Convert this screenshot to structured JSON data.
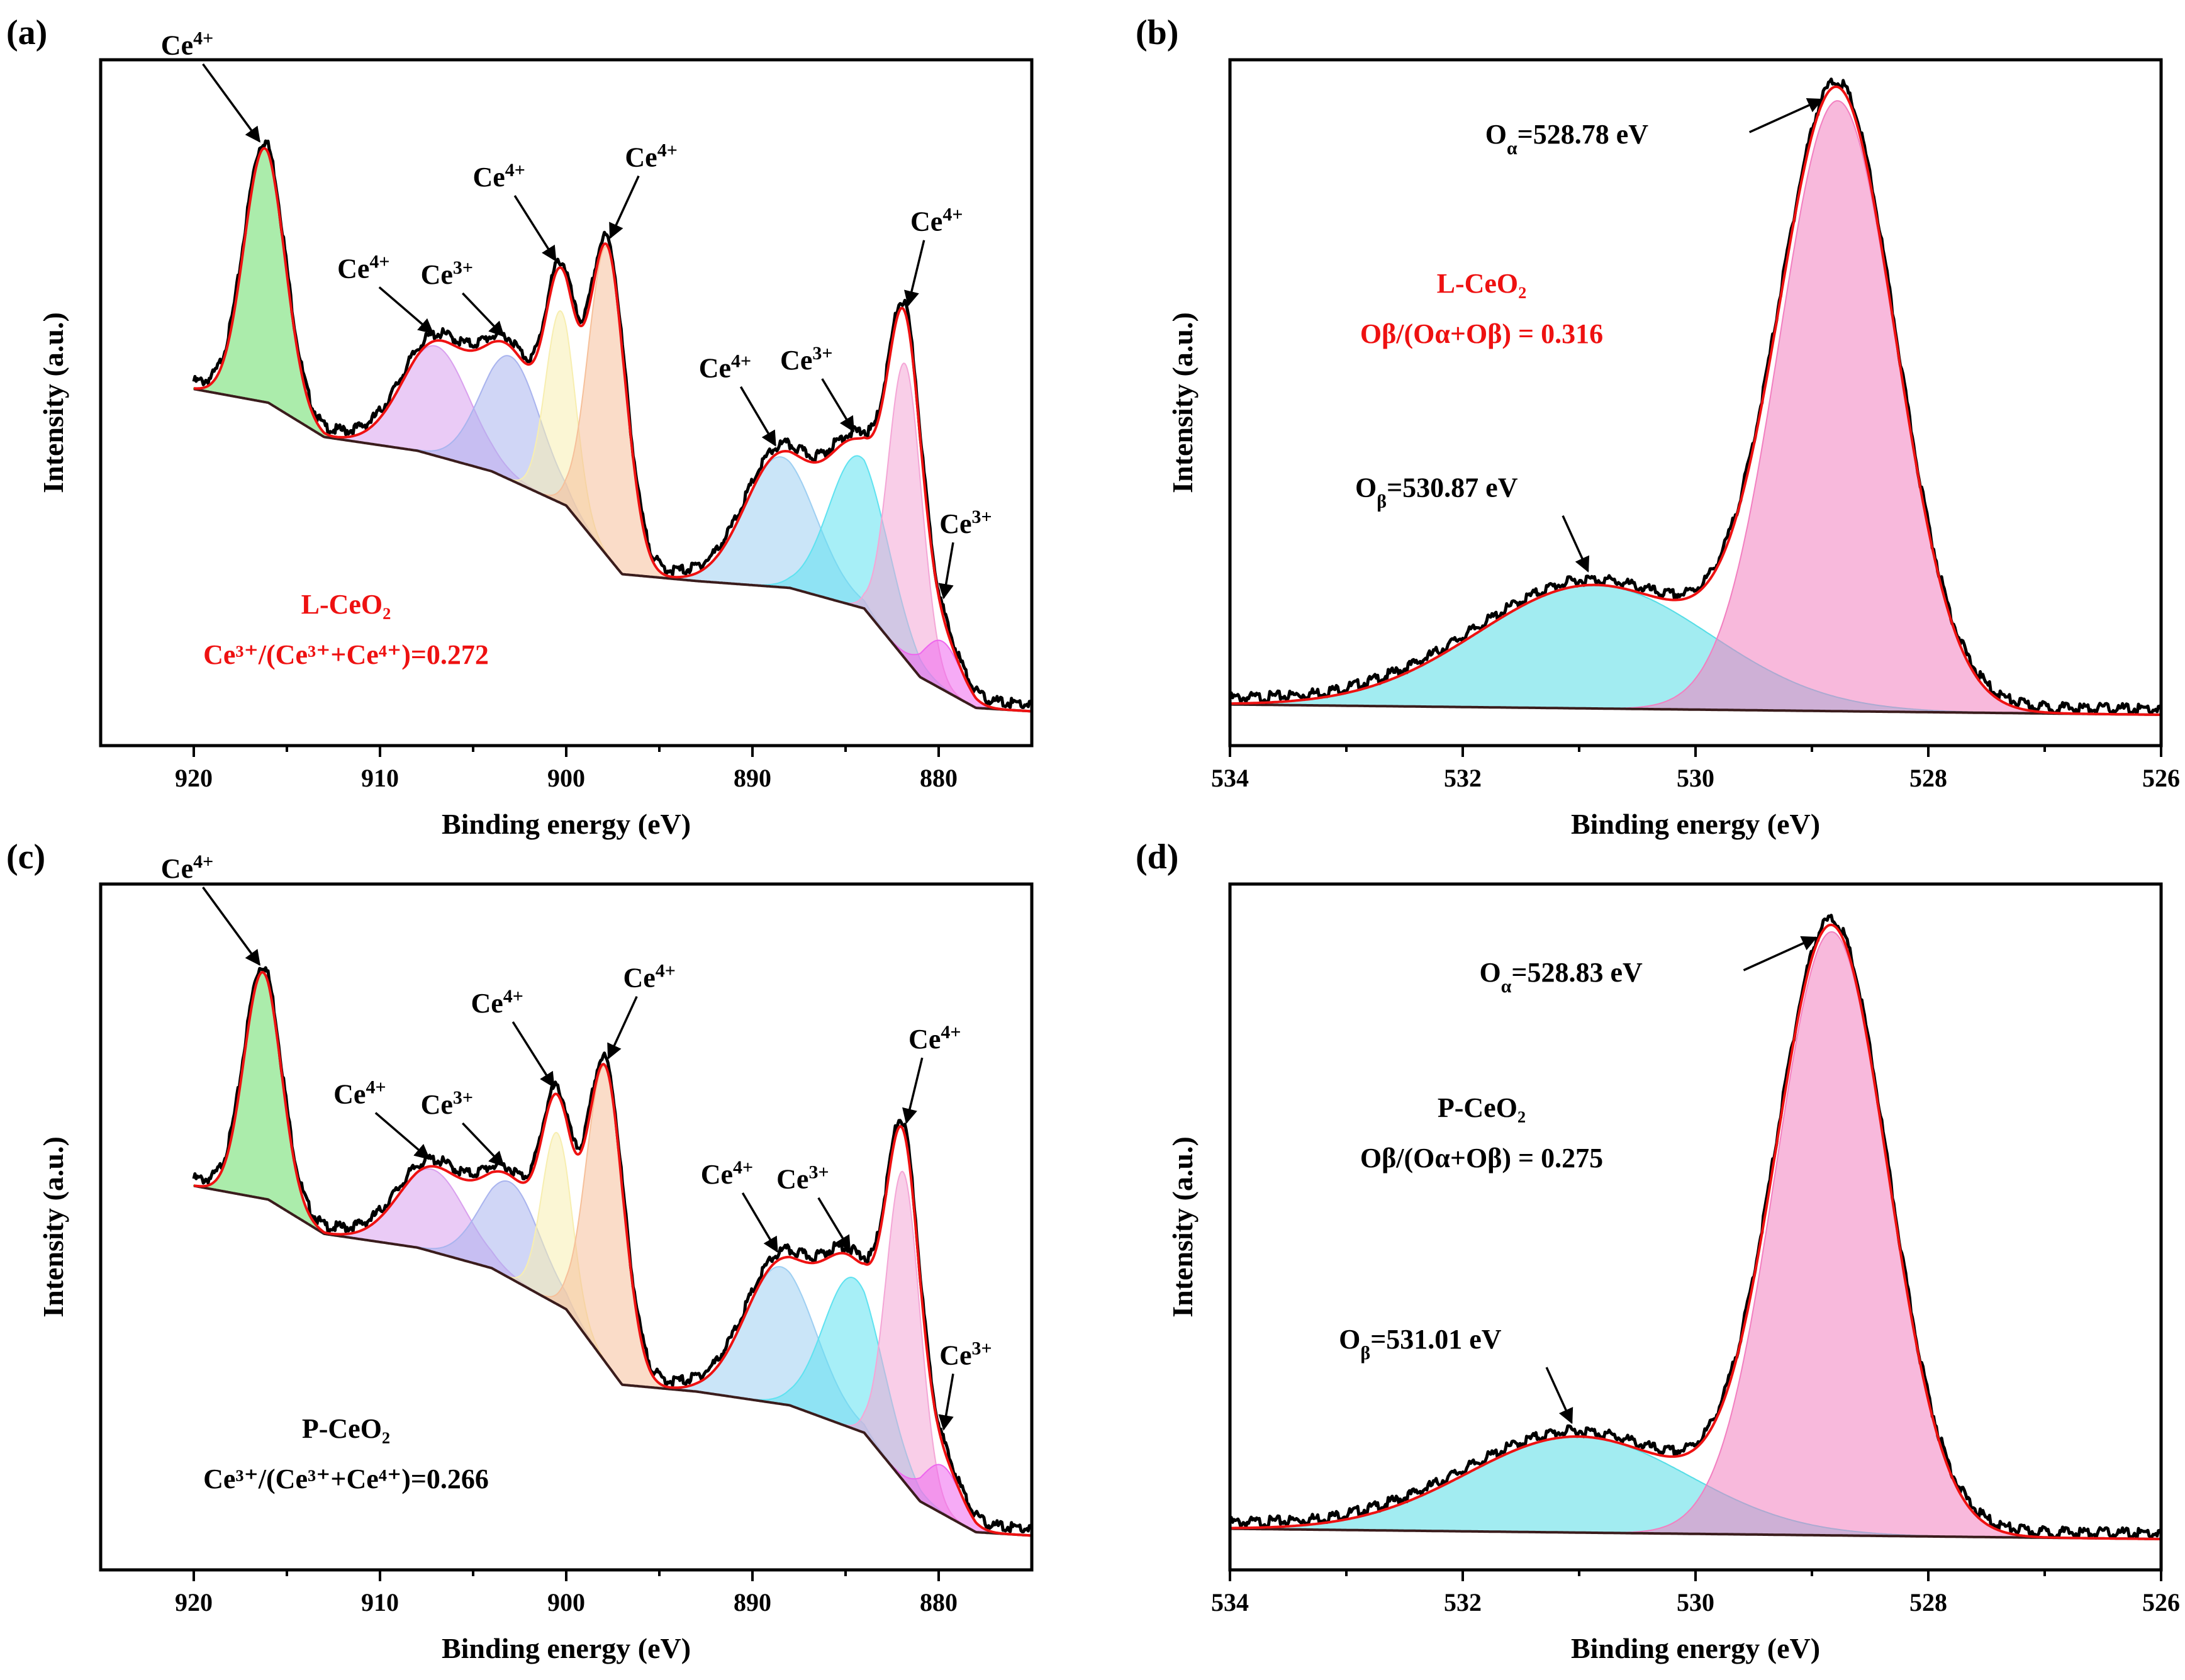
{
  "chart_data": [
    {
      "panel": "(a)",
      "type": "line",
      "title": "",
      "xlabel": "Binding energy (eV)",
      "ylabel": "Intensity (a.u.)",
      "xlim": [
        925,
        875
      ],
      "xticks": [
        920,
        910,
        900,
        890,
        880
      ],
      "ylim": [
        0,
        1
      ],
      "sample_label": "L-CeO₂",
      "ratio_label": "Ce³⁺/(Ce³⁺+Ce⁴⁺)=0.272",
      "label_color": "#ee1111",
      "background": {
        "x": [
          920,
          916,
          913,
          908,
          904,
          900,
          897,
          893,
          888,
          884,
          881,
          878,
          875
        ],
        "y": [
          0.52,
          0.5,
          0.45,
          0.43,
          0.4,
          0.35,
          0.25,
          0.24,
          0.23,
          0.2,
          0.1,
          0.055,
          0.05
        ]
      },
      "components": [
        {
          "center": 916.2,
          "height": 0.37,
          "sigma": 1.1,
          "color": "#66dd66",
          "label": "Ce4+"
        },
        {
          "center": 907.0,
          "height": 0.16,
          "sigma": 1.8,
          "color": "#d9a0ee",
          "label": "Ce4+"
        },
        {
          "center": 903.0,
          "height": 0.18,
          "sigma": 1.6,
          "color": "#a9b4ee",
          "label": "Ce3+"
        },
        {
          "center": 900.3,
          "height": 0.28,
          "sigma": 0.8,
          "color": "#f7eeb0",
          "label": "Ce4+"
        },
        {
          "center": 897.8,
          "height": 0.45,
          "sigma": 1.0,
          "color": "#f6c09a",
          "label": "Ce4+"
        },
        {
          "center": 888.5,
          "height": 0.19,
          "sigma": 1.9,
          "color": "#9ecff2",
          "label": "Ce4+"
        },
        {
          "center": 884.3,
          "height": 0.22,
          "sigma": 1.6,
          "color": "#5fe2f0",
          "label": "Ce3+"
        },
        {
          "center": 881.8,
          "height": 0.43,
          "sigma": 0.9,
          "color": "#f4a6d6",
          "label": "Ce4+"
        },
        {
          "center": 879.8,
          "height": 0.07,
          "sigma": 1.0,
          "color": "#ee66ee",
          "label": "Ce3+"
        }
      ],
      "annotations": [
        {
          "base": "Ce",
          "sup": "4+",
          "x": 916.3
        },
        {
          "base": "Ce",
          "sup": "4+",
          "x": 907.0
        },
        {
          "base": "Ce",
          "sup": "3+",
          "x": 903.2
        },
        {
          "base": "Ce",
          "sup": "4+",
          "x": 900.4
        },
        {
          "base": "Ce",
          "sup": "4+",
          "x": 897.8
        },
        {
          "base": "Ce",
          "sup": "4+",
          "x": 888.6
        },
        {
          "base": "Ce",
          "sup": "3+",
          "x": 884.4
        },
        {
          "base": "Ce",
          "sup": "4+",
          "x": 881.8
        },
        {
          "base": "Ce",
          "sup": "3+",
          "x": 879.9
        }
      ]
    },
    {
      "panel": "(b)",
      "type": "line",
      "xlabel": "Binding energy (eV)",
      "ylabel": "Intensity (a.u.)",
      "xlim": [
        534,
        526
      ],
      "xticks": [
        534,
        532,
        530,
        528,
        526
      ],
      "ylim": [
        0,
        1
      ],
      "sample_label": "L-CeO₂",
      "ratio_label": "Oβ/(Oα+Oβ) = 0.316",
      "label_color": "#ee1111",
      "background": {
        "x": [
          534,
          526
        ],
        "y": [
          0.06,
          0.045
        ]
      },
      "components": [
        {
          "center": 530.87,
          "height": 0.18,
          "sigma": 1.0,
          "color": "#55dde6",
          "label": "Oβ=530.87 eV"
        },
        {
          "center": 528.78,
          "height": 0.89,
          "sigma": 0.5,
          "color": "#f27fc0",
          "label": "Oα=528.78 eV"
        }
      ],
      "annotations": [
        {
          "base": "O",
          "sub": "α",
          "text": "=528.78 eV",
          "x": 528.78
        },
        {
          "base": "O",
          "sub": "β",
          "text": "=530.87 eV",
          "x": 530.87
        }
      ]
    },
    {
      "panel": "(c)",
      "type": "line",
      "xlabel": "Binding energy (eV)",
      "ylabel": "Intensity (a.u.)",
      "xlim": [
        925,
        875
      ],
      "xticks": [
        920,
        910,
        900,
        890,
        880
      ],
      "ylim": [
        0,
        1
      ],
      "sample_label": "P-CeO₂",
      "ratio_label": "Ce³⁺/(Ce³⁺+Ce⁴⁺)=0.266",
      "label_color": "#000000",
      "background": {
        "x": [
          920,
          916,
          913,
          908,
          904,
          900,
          897,
          893,
          888,
          884,
          881,
          878,
          875
        ],
        "y": [
          0.56,
          0.54,
          0.49,
          0.47,
          0.44,
          0.38,
          0.27,
          0.26,
          0.24,
          0.2,
          0.1,
          0.055,
          0.05
        ]
      },
      "components": [
        {
          "center": 916.3,
          "height": 0.33,
          "sigma": 1.0,
          "color": "#66dd66",
          "label": "Ce4+"
        },
        {
          "center": 907.2,
          "height": 0.12,
          "sigma": 1.8,
          "color": "#d9a0ee",
          "label": "Ce4+"
        },
        {
          "center": 903.0,
          "height": 0.14,
          "sigma": 1.6,
          "color": "#a9b4ee",
          "label": "Ce3+"
        },
        {
          "center": 900.5,
          "height": 0.25,
          "sigma": 0.8,
          "color": "#f7eeb0",
          "label": "Ce4+"
        },
        {
          "center": 897.9,
          "height": 0.43,
          "sigma": 1.0,
          "color": "#f6c09a",
          "label": "Ce4+"
        },
        {
          "center": 888.5,
          "height": 0.2,
          "sigma": 1.9,
          "color": "#9ecff2",
          "label": "Ce4+"
        },
        {
          "center": 884.6,
          "height": 0.22,
          "sigma": 1.6,
          "color": "#5fe2f0",
          "label": "Ce3+"
        },
        {
          "center": 881.9,
          "height": 0.45,
          "sigma": 0.9,
          "color": "#f4a6d6",
          "label": "Ce4+"
        },
        {
          "center": 879.8,
          "height": 0.07,
          "sigma": 1.0,
          "color": "#ee66ee",
          "label": "Ce3+"
        }
      ],
      "annotations": [
        {
          "base": "Ce",
          "sup": "4+",
          "x": 916.3
        },
        {
          "base": "Ce",
          "sup": "4+",
          "x": 907.2
        },
        {
          "base": "Ce",
          "sup": "3+",
          "x": 903.2
        },
        {
          "base": "Ce",
          "sup": "4+",
          "x": 900.5
        },
        {
          "base": "Ce",
          "sup": "4+",
          "x": 897.9
        },
        {
          "base": "Ce",
          "sup": "4+",
          "x": 888.5
        },
        {
          "base": "Ce",
          "sup": "3+",
          "x": 884.6
        },
        {
          "base": "Ce",
          "sup": "4+",
          "x": 881.9
        },
        {
          "base": "Ce",
          "sup": "3+",
          "x": 879.9
        }
      ]
    },
    {
      "panel": "(d)",
      "type": "line",
      "xlabel": "Binding energy (eV)",
      "ylabel": "Intensity (a.u.)",
      "xlim": [
        534,
        526
      ],
      "xticks": [
        534,
        532,
        530,
        528,
        526
      ],
      "ylim": [
        0,
        1
      ],
      "sample_label": "P-CeO₂",
      "ratio_label": "Oβ/(Oα+Oβ) = 0.275",
      "label_color": "#000000",
      "background": {
        "x": [
          534,
          526
        ],
        "y": [
          0.06,
          0.045
        ]
      },
      "components": [
        {
          "center": 531.01,
          "height": 0.14,
          "sigma": 0.95,
          "color": "#55dde6",
          "label": "Oβ=531.01 eV"
        },
        {
          "center": 528.83,
          "height": 0.88,
          "sigma": 0.48,
          "color": "#f27fc0",
          "label": "Oα=528.83 eV"
        }
      ],
      "annotations": [
        {
          "base": "O",
          "sub": "α",
          "text": "=528.83 eV",
          "x": 528.83
        },
        {
          "base": "O",
          "sub": "β",
          "text": "=531.01 eV",
          "x": 531.01
        }
      ]
    }
  ]
}
